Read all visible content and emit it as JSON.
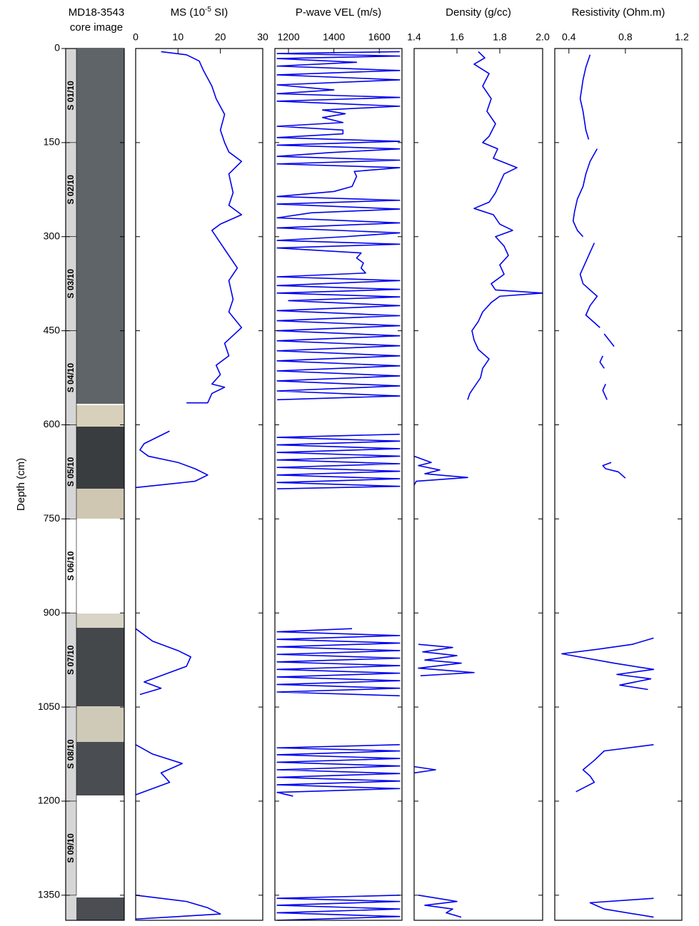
{
  "chart_data": [
    {
      "type": "core",
      "title": [
        "MD18-3543",
        "core image"
      ],
      "ylabel": "Depth (cm)",
      "ylim": [
        0,
        1390
      ],
      "yticks": [
        0,
        150,
        300,
        450,
        600,
        750,
        900,
        1050,
        1200,
        1350
      ],
      "sections": [
        {
          "label": "S 01/10",
          "top": 0,
          "bottom": 150,
          "color": "#d6d6d6"
        },
        {
          "label": "S 02/10",
          "top": 150,
          "bottom": 300,
          "color": "#d6d6d6"
        },
        {
          "label": "S 03/10",
          "top": 300,
          "bottom": 450,
          "color": "#d6d6d6"
        },
        {
          "label": "S 04/10",
          "top": 450,
          "bottom": 600,
          "color": "#d6d6d6"
        },
        {
          "label": "S 05/10",
          "top": 600,
          "bottom": 750,
          "color": "#d6d6d6"
        },
        {
          "label": "S 06/10",
          "top": 750,
          "bottom": 900,
          "color": "#ffffff"
        },
        {
          "label": "S 07/10",
          "top": 900,
          "bottom": 1050,
          "color": "#d6d6d6"
        },
        {
          "label": "S 08/10",
          "top": 1050,
          "bottom": 1200,
          "color": "#d6d6d6"
        },
        {
          "label": "S 09/10",
          "top": 1200,
          "bottom": 1350,
          "color": "#d6d6d6"
        }
      ]
    },
    {
      "type": "line",
      "title": [
        "MS (10",
        "-5",
        " SI)"
      ],
      "xlim": [
        0,
        30
      ],
      "xticks": [
        0,
        10,
        20,
        30
      ],
      "color": "#0000ee",
      "y": [
        5,
        10,
        20,
        35,
        60,
        80,
        105,
        130,
        150,
        165,
        180,
        200,
        230,
        250,
        265,
        280,
        290,
        310,
        330,
        350,
        370,
        400,
        420,
        445,
        470,
        490,
        505,
        520,
        535,
        540,
        550,
        565,
        565,
        null,
        610,
        630,
        640,
        650,
        660,
        670,
        680,
        690,
        700,
        null,
        925,
        945,
        960,
        970,
        985,
        1000,
        1010,
        1020,
        1030,
        null,
        1110,
        1125,
        1140,
        1155,
        1170,
        1190,
        null,
        1350,
        1360,
        1370,
        1380,
        1388
      ],
      "values": [
        6,
        12,
        15,
        16,
        18,
        19,
        21,
        20,
        21,
        22,
        25,
        22,
        23,
        22,
        25,
        20,
        18,
        20,
        22,
        24,
        22,
        23,
        22,
        25,
        21,
        22,
        19,
        20,
        18,
        21,
        18,
        17,
        12,
        null,
        8,
        2,
        1,
        3,
        10,
        14,
        17,
        14,
        0,
        null,
        0,
        4,
        10,
        13,
        12,
        6,
        2,
        6,
        1,
        null,
        0,
        4,
        11,
        6,
        8,
        0,
        null,
        0,
        12,
        17,
        20,
        0
      ]
    },
    {
      "type": "line",
      "title": "P-wave VEL (m/s)",
      "xlim": [
        1140,
        1700
      ],
      "xticks": [
        1200,
        1400,
        1600
      ],
      "color": "#0000ee",
      "y": [
        5,
        8,
        12,
        16,
        22,
        28,
        35,
        42,
        50,
        58,
        66,
        72,
        78,
        84,
        92,
        98,
        104,
        110,
        118,
        124,
        130,
        136,
        142,
        148,
        154,
        160,
        166,
        172,
        178,
        184,
        190,
        196,
        204,
        212,
        220,
        228,
        236,
        242,
        248,
        256,
        262,
        270,
        278,
        286,
        294,
        300,
        306,
        312,
        318,
        326,
        334,
        342,
        350,
        358,
        364,
        370,
        378,
        384,
        390,
        396,
        402,
        410,
        418,
        426,
        434,
        442,
        450,
        458,
        466,
        474,
        482,
        490,
        498,
        506,
        514,
        522,
        530,
        538,
        546,
        554,
        560,
        null,
        615,
        620,
        626,
        632,
        638,
        644,
        650,
        656,
        662,
        668,
        674,
        680,
        686,
        692,
        698,
        702,
        null,
        925,
        930,
        936,
        942,
        948,
        954,
        960,
        966,
        972,
        978,
        984,
        990,
        996,
        1002,
        1008,
        1014,
        1020,
        1026,
        1032,
        null,
        1110,
        1115,
        1120,
        1126,
        1132,
        1138,
        1144,
        1150,
        1156,
        1162,
        1168,
        1174,
        1180,
        1186,
        1192,
        null,
        1350,
        1355,
        1360,
        1366,
        1372,
        1378,
        1384,
        1390
      ],
      "values": [
        1690,
        1150,
        1690,
        1150,
        1500,
        1150,
        1690,
        1150,
        1690,
        1150,
        1400,
        1150,
        1690,
        1150,
        1690,
        1350,
        1450,
        1350,
        1440,
        1150,
        1440,
        1440,
        1150,
        1690,
        1150,
        1690,
        1380,
        1150,
        1690,
        1150,
        1690,
        1490,
        1500,
        1490,
        1480,
        1400,
        1150,
        1690,
        1150,
        1690,
        1300,
        1150,
        1690,
        1150,
        1690,
        1450,
        1150,
        1690,
        1150,
        1520,
        1500,
        1530,
        1520,
        1540,
        1150,
        1690,
        1150,
        1690,
        1150,
        1690,
        1200,
        1690,
        1150,
        1690,
        1150,
        1690,
        1150,
        1690,
        1150,
        1690,
        1150,
        1690,
        1150,
        1690,
        1150,
        1690,
        1150,
        1690,
        1150,
        1690,
        1150,
        null,
        1690,
        1150,
        1690,
        1150,
        1690,
        1150,
        1690,
        1150,
        1690,
        1150,
        1690,
        1150,
        1690,
        1150,
        1690,
        1150,
        null,
        1480,
        1150,
        1690,
        1150,
        1690,
        1150,
        1690,
        1150,
        1690,
        1150,
        1690,
        1150,
        1690,
        1150,
        1690,
        1150,
        1690,
        1150,
        1690,
        null,
        1690,
        1150,
        1690,
        1150,
        1690,
        1150,
        1690,
        1150,
        1690,
        1150,
        1690,
        1150,
        1690,
        1150,
        1220,
        null,
        1690,
        1150,
        1690,
        1150,
        1690,
        1150,
        1690,
        1150
      ]
    },
    {
      "type": "line",
      "title": "Density (g/cc)",
      "xlim": [
        1.4,
        2.0
      ],
      "xticks": [
        1.4,
        1.6,
        1.8,
        {
          "value": 2.0,
          "label": "2.0"
        }
      ],
      "color": "#0000ee",
      "y": [
        5,
        15,
        25,
        40,
        60,
        80,
        100,
        120,
        140,
        150,
        160,
        175,
        190,
        200,
        215,
        230,
        245,
        255,
        265,
        280,
        290,
        300,
        315,
        330,
        345,
        360,
        375,
        385,
        390,
        395,
        405,
        420,
        435,
        450,
        465,
        480,
        495,
        510,
        525,
        540,
        550,
        560,
        null,
        650,
        660,
        665,
        672,
        678,
        684,
        690,
        696,
        null,
        950,
        955,
        962,
        968,
        975,
        980,
        988,
        995,
        1000,
        null,
        1145,
        1150,
        1155,
        null,
        1350,
        1360,
        1366,
        1372,
        1378,
        1385
      ],
      "values": [
        1.7,
        1.73,
        1.68,
        1.75,
        1.72,
        1.76,
        1.74,
        1.78,
        1.75,
        1.72,
        1.79,
        1.77,
        1.88,
        1.82,
        1.8,
        1.78,
        1.75,
        1.68,
        1.77,
        1.8,
        1.86,
        1.78,
        1.82,
        1.84,
        1.8,
        1.82,
        1.76,
        1.78,
        2.0,
        1.8,
        1.76,
        1.72,
        1.7,
        1.67,
        1.68,
        1.7,
        1.75,
        1.72,
        1.71,
        1.68,
        1.66,
        1.65,
        null,
        1.4,
        1.48,
        1.42,
        1.52,
        1.45,
        1.65,
        1.41,
        1.4,
        null,
        1.42,
        1.58,
        1.44,
        1.6,
        1.45,
        1.62,
        1.42,
        1.68,
        1.43,
        null,
        1.4,
        1.5,
        1.4,
        null,
        1.42,
        1.6,
        1.45,
        1.58,
        1.55,
        1.62
      ]
    },
    {
      "type": "line",
      "title": "Resistivity (Ohm.m)",
      "xlim": [
        0.3,
        1.2
      ],
      "xticks": [
        0.4,
        0.8,
        1.2
      ],
      "color": "#0000ee",
      "y": [
        10,
        30,
        50,
        80,
        100,
        130,
        145,
        null,
        160,
        180,
        200,
        220,
        240,
        260,
        275,
        290,
        300,
        null,
        310,
        325,
        340,
        360,
        375,
        395,
        410,
        425,
        445,
        null,
        455,
        475,
        null,
        490,
        500,
        510,
        null,
        535,
        545,
        560,
        null,
        660,
        665,
        670,
        675,
        685,
        null,
        940,
        950,
        958,
        965,
        980,
        990,
        998,
        1005,
        1015,
        1022,
        null,
        1110,
        1120,
        1135,
        1150,
        1160,
        1170,
        1185,
        null,
        1355,
        1362,
        1372,
        1385
      ],
      "values": [
        0.55,
        0.52,
        0.5,
        0.48,
        0.5,
        0.52,
        0.54,
        null,
        0.6,
        0.55,
        0.52,
        0.5,
        0.46,
        0.44,
        0.43,
        0.46,
        0.5,
        null,
        0.58,
        0.55,
        0.52,
        0.48,
        0.5,
        0.6,
        0.55,
        0.52,
        0.62,
        null,
        0.65,
        0.72,
        null,
        0.64,
        0.62,
        0.65,
        null,
        0.66,
        0.64,
        0.67,
        null,
        0.7,
        0.64,
        0.66,
        0.75,
        0.8,
        null,
        1.0,
        0.85,
        0.6,
        0.35,
        0.72,
        1.0,
        0.74,
        0.98,
        0.76,
        0.96,
        null,
        1.0,
        0.65,
        0.58,
        0.5,
        0.55,
        0.58,
        0.45,
        null,
        1.0,
        0.55,
        0.65,
        1.0
      ]
    }
  ]
}
